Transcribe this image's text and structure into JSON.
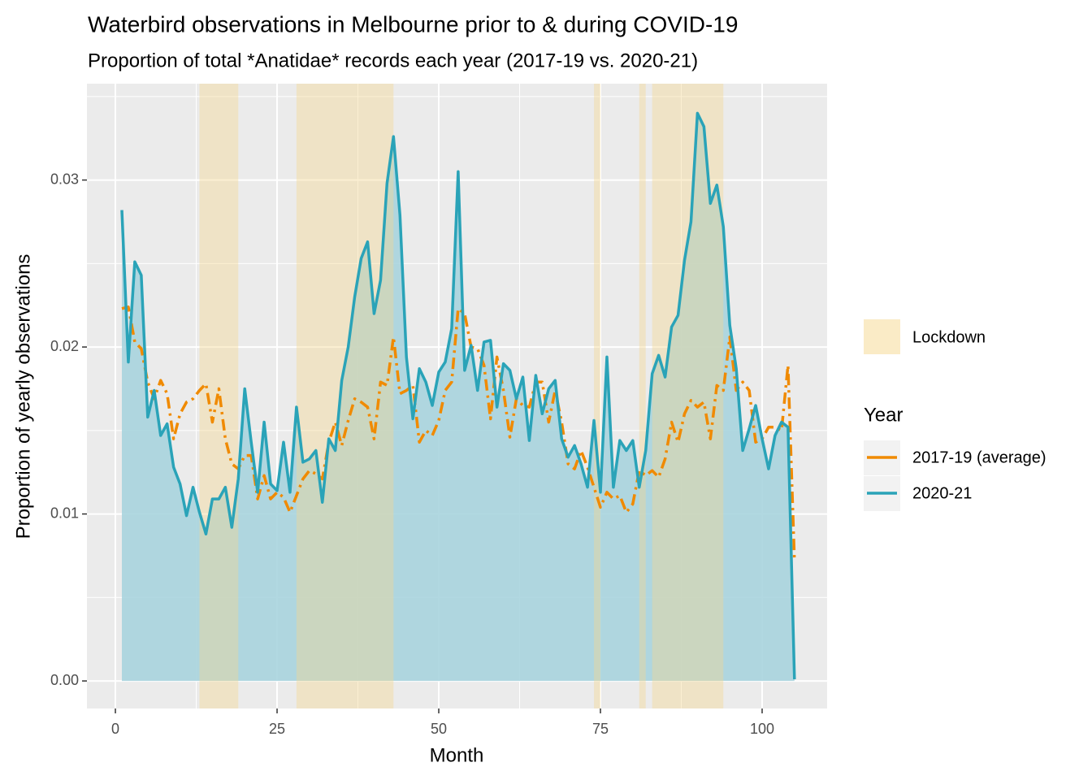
{
  "chart_data": {
    "type": "line",
    "title": "Waterbird observations in Melbourne prior to & during COVID-19",
    "subtitle": "Proportion of total *Anatidae* records each year (2017-19 vs. 2020-21)",
    "x_label": "Month",
    "y_label": "Proportion of yearly observations",
    "legend_title": "Year",
    "x": [
      1,
      2,
      3,
      4,
      5,
      6,
      7,
      8,
      9,
      10,
      11,
      12,
      13,
      14,
      15,
      16,
      17,
      18,
      19,
      20,
      21,
      22,
      23,
      24,
      25,
      26,
      27,
      28,
      29,
      30,
      31,
      32,
      33,
      34,
      35,
      36,
      37,
      38,
      39,
      40,
      41,
      42,
      43,
      44,
      45,
      46,
      47,
      48,
      49,
      50,
      51,
      52,
      53,
      54,
      55,
      56,
      57,
      58,
      59,
      60,
      61,
      62,
      63,
      64,
      65,
      66,
      67,
      68,
      69,
      70,
      71,
      72,
      73,
      74,
      75,
      76,
      77,
      78,
      79,
      80,
      81,
      82,
      83,
      84,
      85,
      86,
      87,
      88,
      89,
      90,
      91,
      92,
      93,
      94,
      95,
      96,
      97,
      98,
      99,
      100,
      101,
      102,
      103,
      104,
      105
    ],
    "series": [
      {
        "name": "2017-19 (average)",
        "color": "#f08a00",
        "dash": "dotdash",
        "values": [
          0.0223,
          0.0224,
          0.0203,
          0.0199,
          0.0179,
          0.0169,
          0.018,
          0.0172,
          0.0145,
          0.016,
          0.0167,
          0.0169,
          0.0174,
          0.0178,
          0.0155,
          0.0175,
          0.0145,
          0.013,
          0.0127,
          0.0135,
          0.0135,
          0.0109,
          0.0123,
          0.0109,
          0.0113,
          0.011,
          0.0101,
          0.0111,
          0.0121,
          0.0126,
          0.0124,
          0.0121,
          0.0143,
          0.0155,
          0.0141,
          0.0156,
          0.0169,
          0.0167,
          0.0164,
          0.0145,
          0.0179,
          0.0177,
          0.0206,
          0.0172,
          0.0174,
          0.0177,
          0.0143,
          0.015,
          0.0147,
          0.0156,
          0.0174,
          0.0179,
          0.0223,
          0.022,
          0.02,
          0.0199,
          0.0189,
          0.0157,
          0.0194,
          0.0174,
          0.0146,
          0.0169,
          0.0165,
          0.0164,
          0.0179,
          0.0179,
          0.0155,
          0.0174,
          0.0155,
          0.013,
          0.0127,
          0.0138,
          0.0128,
          0.0116,
          0.0104,
          0.0113,
          0.0109,
          0.0111,
          0.0101,
          0.0106,
          0.0126,
          0.0123,
          0.0126,
          0.0122,
          0.0133,
          0.0155,
          0.0143,
          0.016,
          0.0168,
          0.0164,
          0.0167,
          0.0145,
          0.0177,
          0.0174,
          0.0206,
          0.0174,
          0.0179,
          0.0174,
          0.0143,
          0.0145,
          0.0152,
          0.0152,
          0.015,
          0.0189,
          0.0072
        ]
      },
      {
        "name": "2020-21",
        "color": "#2aa3b8",
        "fill": "#a9d4de",
        "values": [
          0.0282,
          0.0191,
          0.0251,
          0.0243,
          0.0158,
          0.0174,
          0.0147,
          0.0154,
          0.0128,
          0.0118,
          0.0099,
          0.0116,
          0.0101,
          0.0088,
          0.0109,
          0.0109,
          0.0116,
          0.0092,
          0.0121,
          0.0175,
          0.0143,
          0.0113,
          0.0155,
          0.0118,
          0.0114,
          0.0143,
          0.0113,
          0.0164,
          0.0131,
          0.0133,
          0.0138,
          0.0107,
          0.0145,
          0.0138,
          0.018,
          0.02,
          0.023,
          0.0253,
          0.0263,
          0.022,
          0.024,
          0.0298,
          0.0326,
          0.0279,
          0.0194,
          0.0157,
          0.0187,
          0.0179,
          0.0165,
          0.0185,
          0.0191,
          0.0211,
          0.0305,
          0.0186,
          0.0201,
          0.0174,
          0.0203,
          0.0204,
          0.0164,
          0.019,
          0.0186,
          0.0169,
          0.0182,
          0.0144,
          0.0183,
          0.016,
          0.0175,
          0.018,
          0.0145,
          0.0134,
          0.0141,
          0.013,
          0.0116,
          0.0156,
          0.0113,
          0.0194,
          0.0116,
          0.0144,
          0.0138,
          0.0144,
          0.0116,
          0.0138,
          0.0184,
          0.0195,
          0.0182,
          0.0212,
          0.0219,
          0.0252,
          0.0275,
          0.034,
          0.0332,
          0.0286,
          0.0297,
          0.0272,
          0.0213,
          0.0187,
          0.0138,
          0.0151,
          0.0165,
          0.0145,
          0.0127,
          0.0147,
          0.0155,
          0.0152,
          0.0001
        ]
      }
    ],
    "shaded_regions": {
      "name": "Lockdown",
      "color": "#f5d78e",
      "opacity": 0.4,
      "ranges": [
        [
          13,
          19
        ],
        [
          28,
          43
        ],
        [
          74,
          75
        ],
        [
          81,
          82
        ],
        [
          83,
          94
        ]
      ]
    },
    "xlim": [
      -4.4,
      110.05
    ],
    "ylim": [
      -0.00165,
      0.03577
    ],
    "xticks": [
      0,
      25,
      50,
      75,
      100
    ],
    "yticks": [
      {
        "value": 0,
        "label": "0.00"
      },
      0.01,
      0.02,
      0.03
    ],
    "grid": true,
    "legend_position": "right"
  }
}
